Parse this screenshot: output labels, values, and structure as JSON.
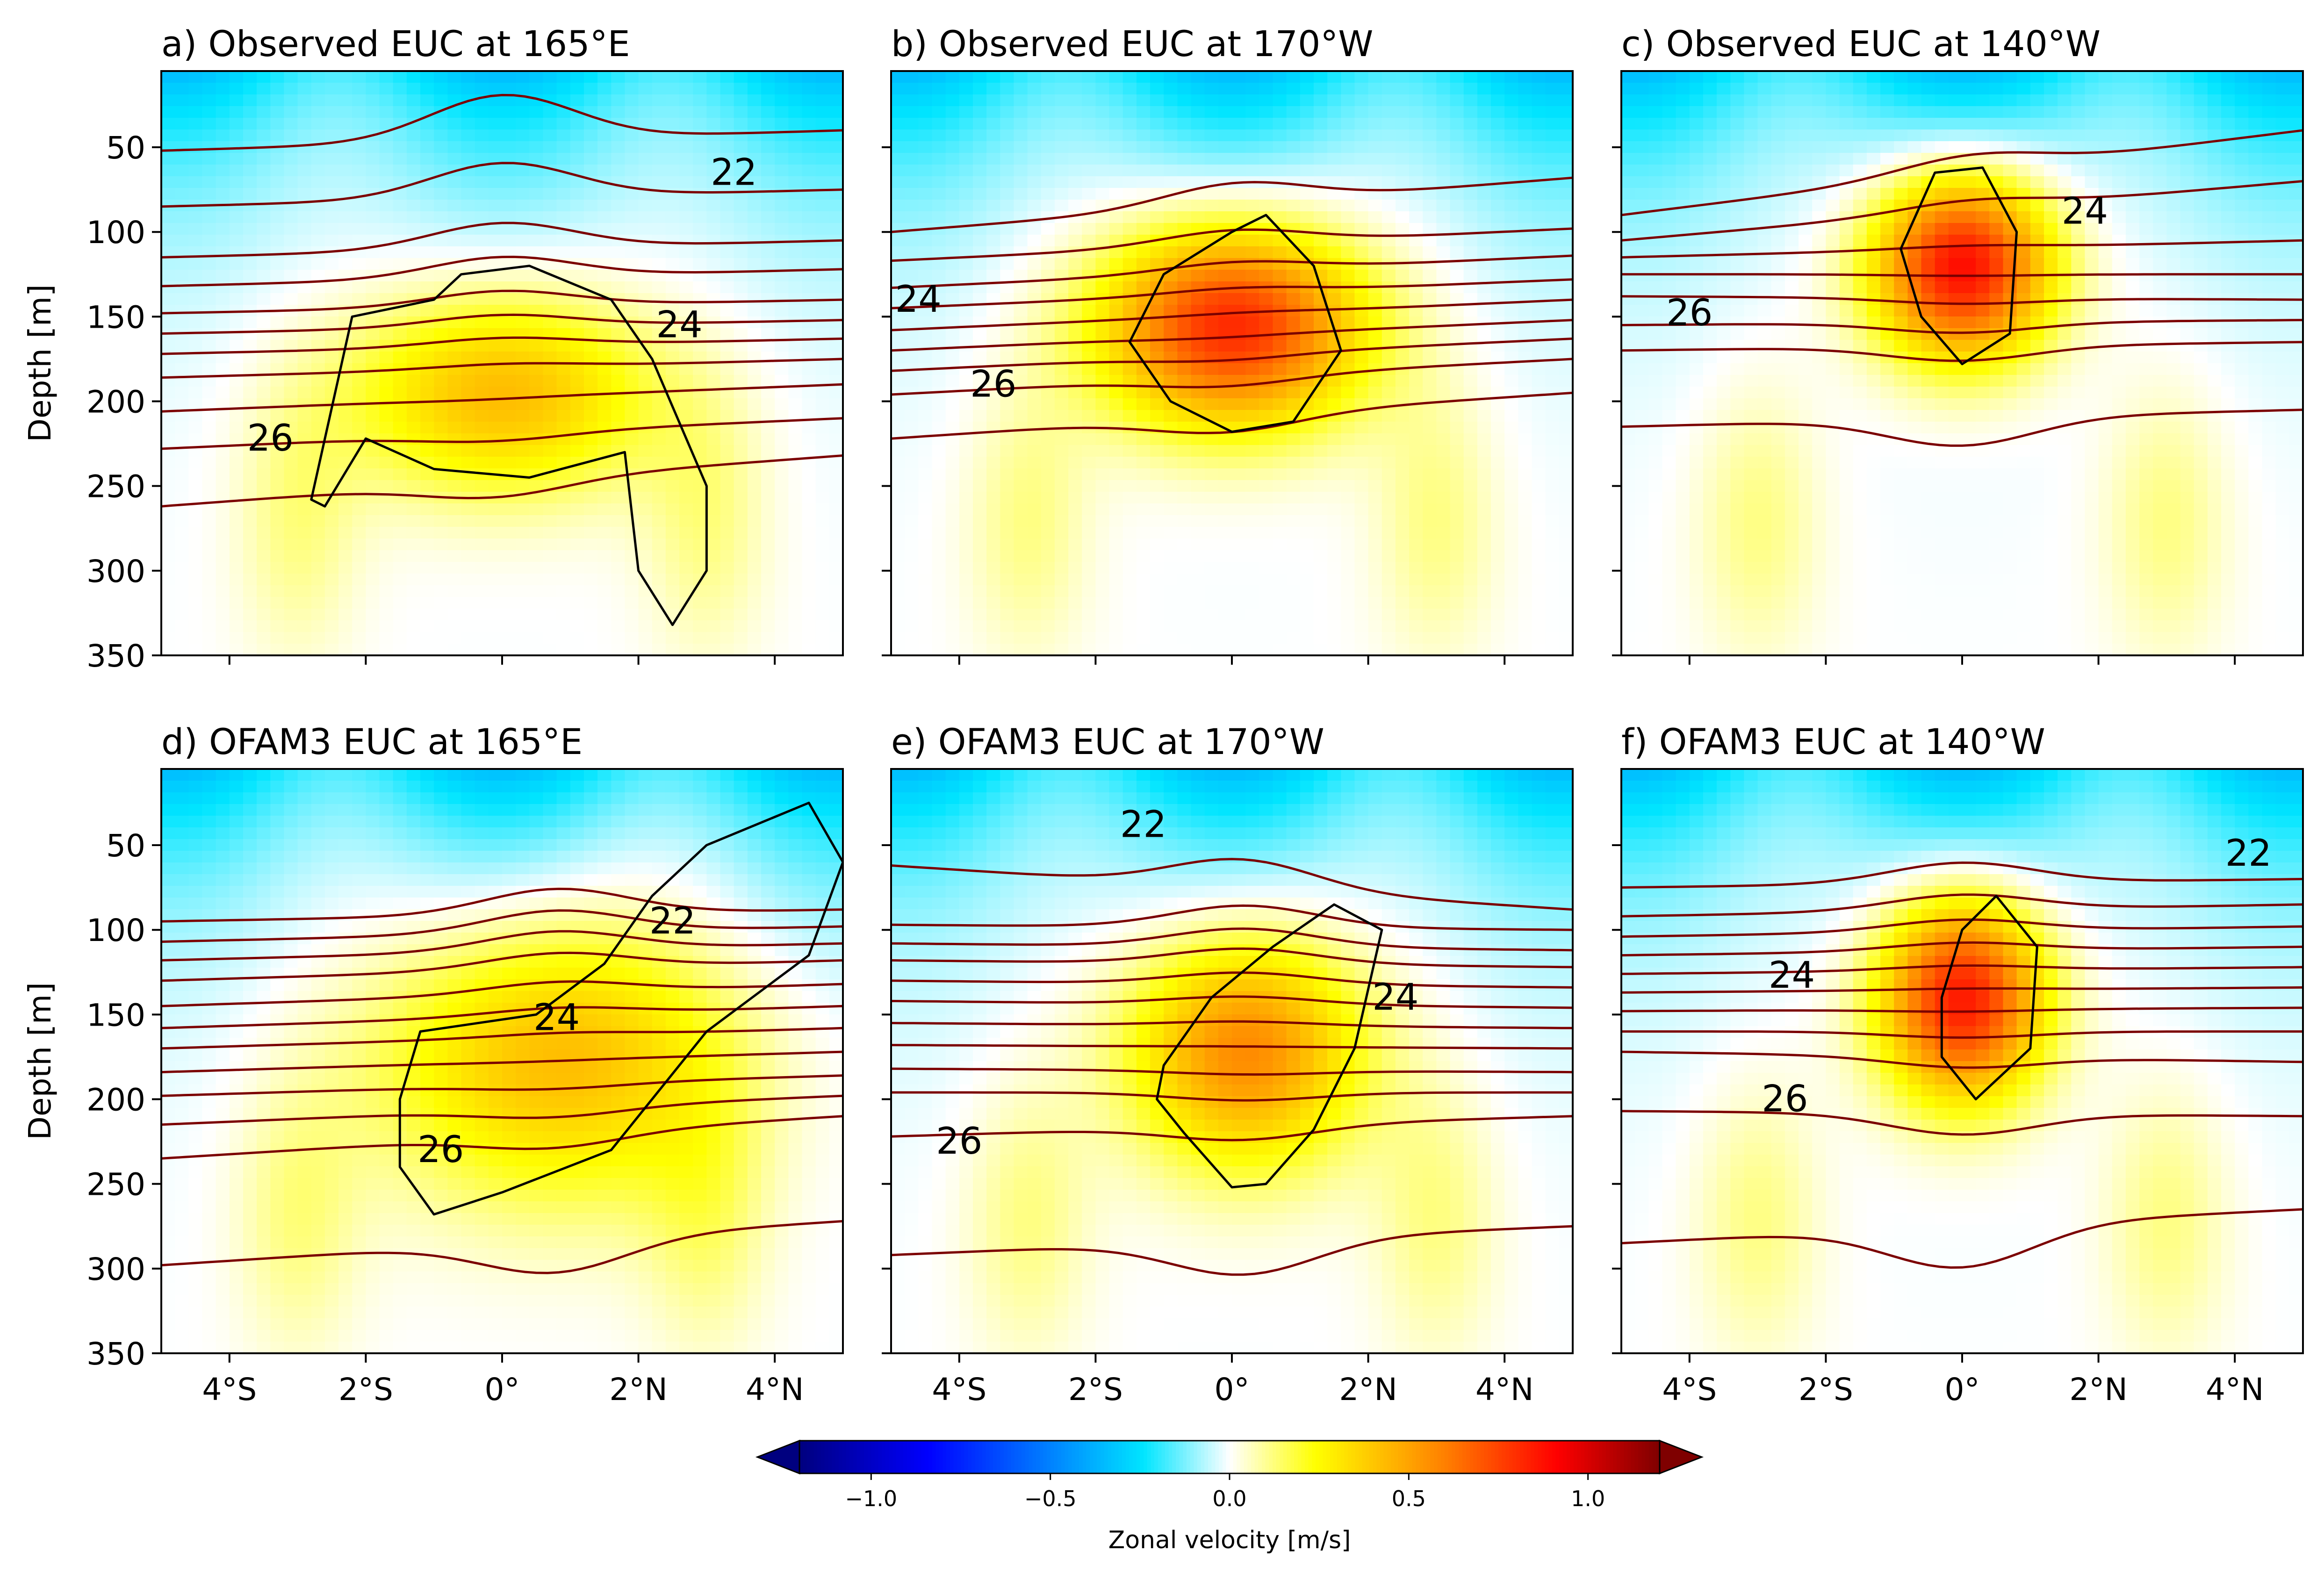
{
  "figure": {
    "colors": {
      "isotherm": "#7b0000",
      "euc_outline": "#000000",
      "colormap_stops": [
        "#00007f",
        "#0000ff",
        "#00e5ff",
        "#ffffff",
        "#ffff00",
        "#ff8000",
        "#ff0000",
        "#7f0000"
      ]
    }
  },
  "chart_data": [
    {
      "type": "heatmap",
      "title": "a) Observed EUC at 165°E",
      "ylabel": "Depth [m]",
      "xlim": [
        -5,
        5
      ],
      "ylim": [
        350,
        5
      ],
      "y_inverted": true,
      "xticks": [
        -4,
        -2,
        0,
        2,
        4
      ],
      "xtick_labels": [
        "4°S",
        "2°S",
        "0°",
        "2°N",
        "4°N"
      ],
      "xtick_labels_shown": false,
      "yticks": [
        50,
        100,
        150,
        200,
        250,
        300,
        350
      ],
      "ytick_labels": [
        "50",
        "100",
        "150",
        "200",
        "250",
        "300",
        "350"
      ],
      "ytick_labels_shown": true,
      "euc_core": {
        "lat": 0.0,
        "depth": 195,
        "max_u": 0.45,
        "lat_halfwidth": 2.2,
        "depth_halfwidth": 60
      },
      "contour_labels": [
        {
          "text": "22",
          "lat": 3.4,
          "depth": 65
        },
        {
          "text": "24",
          "lat": 2.6,
          "depth": 155
        },
        {
          "text": "26",
          "lat": -3.4,
          "depth": 222
        }
      ],
      "isotherm_depths_left": [
        52,
        85,
        115,
        132,
        148,
        160,
        172,
        186,
        206,
        228,
        262
      ],
      "isotherm_depths_right": [
        40,
        75,
        105,
        122,
        140,
        152,
        163,
        175,
        190,
        210,
        232
      ],
      "euc_outline": [
        [
          -2.8,
          258
        ],
        [
          -2.2,
          150
        ],
        [
          -1.0,
          140
        ],
        [
          -0.6,
          125
        ],
        [
          0.4,
          120
        ],
        [
          1.6,
          140
        ],
        [
          2.2,
          175
        ],
        [
          3.0,
          250
        ],
        [
          3.0,
          300
        ],
        [
          2.5,
          332
        ],
        [
          2.0,
          300
        ],
        [
          1.8,
          230
        ],
        [
          0.4,
          245
        ],
        [
          -1.0,
          240
        ],
        [
          -2.0,
          222
        ],
        [
          -2.6,
          262
        ]
      ]
    },
    {
      "type": "heatmap",
      "title": "b) Observed EUC at 170°W",
      "ylabel": "",
      "xlim": [
        -5,
        5
      ],
      "ylim": [
        350,
        5
      ],
      "y_inverted": true,
      "xticks": [
        -4,
        -2,
        0,
        2,
        4
      ],
      "xtick_labels": [
        "4°S",
        "2°S",
        "0°",
        "2°N",
        "4°N"
      ],
      "xtick_labels_shown": false,
      "yticks": [
        50,
        100,
        150,
        200,
        250,
        300,
        350
      ],
      "ytick_labels_shown": false,
      "euc_core": {
        "lat": 0.0,
        "depth": 155,
        "max_u": 0.85,
        "lat_halfwidth": 1.9,
        "depth_halfwidth": 60
      },
      "contour_labels": [
        {
          "text": "24",
          "lat": -4.6,
          "depth": 140
        },
        {
          "text": "26",
          "lat": -3.5,
          "depth": 190
        }
      ],
      "isotherm_depths_left": [
        100,
        117,
        133,
        145,
        158,
        170,
        182,
        196,
        222
      ],
      "isotherm_depths_right": [
        68,
        98,
        114,
        128,
        140,
        152,
        163,
        175,
        195
      ],
      "euc_outline": [
        [
          -1.5,
          165
        ],
        [
          -1.0,
          125
        ],
        [
          0.0,
          100
        ],
        [
          0.5,
          90
        ],
        [
          1.2,
          120
        ],
        [
          1.6,
          170
        ],
        [
          0.9,
          212
        ],
        [
          0.0,
          218
        ],
        [
          -0.9,
          200
        ]
      ]
    },
    {
      "type": "heatmap",
      "title": "c) Observed EUC at 140°W",
      "ylabel": "",
      "xlim": [
        -5,
        5
      ],
      "ylim": [
        350,
        5
      ],
      "y_inverted": true,
      "xticks": [
        -4,
        -2,
        0,
        2,
        4
      ],
      "xtick_labels": [
        "4°S",
        "2°S",
        "0°",
        "2°N",
        "4°N"
      ],
      "xtick_labels_shown": false,
      "yticks": [
        50,
        100,
        150,
        200,
        250,
        300,
        350
      ],
      "ytick_labels_shown": false,
      "euc_core": {
        "lat": 0.0,
        "depth": 120,
        "max_u": 0.95,
        "lat_halfwidth": 1.3,
        "depth_halfwidth": 55
      },
      "contour_labels": [
        {
          "text": "24",
          "lat": 1.8,
          "depth": 88
        },
        {
          "text": "26",
          "lat": -4.0,
          "depth": 148
        }
      ],
      "isotherm_depths_left": [
        90,
        105,
        115,
        125,
        138,
        155,
        170,
        215
      ],
      "isotherm_depths_right": [
        40,
        70,
        105,
        125,
        140,
        152,
        165,
        205
      ],
      "euc_outline": [
        [
          -0.9,
          110
        ],
        [
          -0.4,
          65
        ],
        [
          0.3,
          62
        ],
        [
          0.8,
          100
        ],
        [
          0.7,
          160
        ],
        [
          0.0,
          178
        ],
        [
          -0.6,
          150
        ]
      ]
    },
    {
      "type": "heatmap",
      "title": "d) OFAM3 EUC at 165°E",
      "ylabel": "Depth [m]",
      "xlim": [
        -5,
        5
      ],
      "ylim": [
        350,
        5
      ],
      "y_inverted": true,
      "xticks": [
        -4,
        -2,
        0,
        2,
        4
      ],
      "xtick_labels": [
        "4°S",
        "2°S",
        "0°",
        "2°N",
        "4°N"
      ],
      "xtick_labels_shown": true,
      "yticks": [
        50,
        100,
        150,
        200,
        250,
        300,
        350
      ],
      "ytick_labels": [
        "50",
        "100",
        "150",
        "200",
        "250",
        "300",
        "350"
      ],
      "ytick_labels_shown": true,
      "euc_core": {
        "lat": 0.8,
        "depth": 175,
        "max_u": 0.45,
        "lat_halfwidth": 2.6,
        "depth_halfwidth": 85
      },
      "contour_labels": [
        {
          "text": "22",
          "lat": 2.5,
          "depth": 95
        },
        {
          "text": "24",
          "lat": 0.8,
          "depth": 152
        },
        {
          "text": "26",
          "lat": -0.9,
          "depth": 230
        }
      ],
      "isotherm_depths_left": [
        95,
        107,
        118,
        130,
        145,
        158,
        170,
        184,
        198,
        215,
        235,
        298
      ],
      "isotherm_depths_right": [
        88,
        98,
        108,
        118,
        132,
        145,
        158,
        172,
        186,
        198,
        210,
        272
      ],
      "euc_outline": [
        [
          -1.5,
          200
        ],
        [
          -1.2,
          160
        ],
        [
          0.5,
          150
        ],
        [
          1.5,
          120
        ],
        [
          2.2,
          80
        ],
        [
          3.0,
          50
        ],
        [
          4.5,
          25
        ],
        [
          5.0,
          60
        ],
        [
          4.5,
          115
        ],
        [
          3.0,
          160
        ],
        [
          1.6,
          230
        ],
        [
          0.0,
          255
        ],
        [
          -1.0,
          268
        ],
        [
          -1.5,
          240
        ]
      ]
    },
    {
      "type": "heatmap",
      "title": "e) OFAM3 EUC at 170°W",
      "ylabel": "",
      "xlim": [
        -5,
        5
      ],
      "ylim": [
        350,
        5
      ],
      "y_inverted": true,
      "xticks": [
        -4,
        -2,
        0,
        2,
        4
      ],
      "xtick_labels": [
        "4°S",
        "2°S",
        "0°",
        "2°N",
        "4°N"
      ],
      "xtick_labels_shown": true,
      "yticks": [
        50,
        100,
        150,
        200,
        250,
        300,
        350
      ],
      "ytick_labels_shown": false,
      "euc_core": {
        "lat": 0.2,
        "depth": 170,
        "max_u": 0.6,
        "lat_halfwidth": 1.7,
        "depth_halfwidth": 70
      },
      "contour_labels": [
        {
          "text": "22",
          "lat": -1.3,
          "depth": 38
        },
        {
          "text": "24",
          "lat": 2.4,
          "depth": 140
        },
        {
          "text": "26",
          "lat": -4.0,
          "depth": 225
        }
      ],
      "isotherm_depths_left": [
        62,
        97,
        108,
        118,
        130,
        142,
        155,
        168,
        182,
        196,
        222,
        292
      ],
      "isotherm_depths_right": [
        88,
        100,
        112,
        122,
        134,
        146,
        158,
        170,
        184,
        196,
        210,
        275
      ],
      "euc_outline": [
        [
          -1.0,
          180
        ],
        [
          -0.3,
          140
        ],
        [
          0.6,
          110
        ],
        [
          1.5,
          85
        ],
        [
          2.2,
          100
        ],
        [
          1.8,
          170
        ],
        [
          1.2,
          218
        ],
        [
          0.5,
          250
        ],
        [
          0.0,
          252
        ],
        [
          -0.7,
          220
        ],
        [
          -1.1,
          200
        ]
      ]
    },
    {
      "type": "heatmap",
      "title": "f) OFAM3 EUC at 140°W",
      "ylabel": "",
      "xlim": [
        -5,
        5
      ],
      "ylim": [
        350,
        5
      ],
      "y_inverted": true,
      "xticks": [
        -4,
        -2,
        0,
        2,
        4
      ],
      "xtick_labels": [
        "4°S",
        "2°S",
        "0°",
        "2°N",
        "4°N"
      ],
      "xtick_labels_shown": true,
      "yticks": [
        50,
        100,
        150,
        200,
        250,
        300,
        350
      ],
      "ytick_labels_shown": false,
      "euc_core": {
        "lat": 0.0,
        "depth": 140,
        "max_u": 0.9,
        "lat_halfwidth": 1.2,
        "depth_halfwidth": 60
      },
      "contour_labels": [
        {
          "text": "22",
          "lat": 4.2,
          "depth": 55
        },
        {
          "text": "24",
          "lat": -2.5,
          "depth": 127
        },
        {
          "text": "26",
          "lat": -2.6,
          "depth": 200
        }
      ],
      "isotherm_depths_left": [
        75,
        92,
        104,
        115,
        126,
        137,
        148,
        160,
        172,
        207,
        285
      ],
      "isotherm_depths_right": [
        70,
        85,
        98,
        110,
        122,
        134,
        146,
        160,
        178,
        210,
        265
      ],
      "euc_outline": [
        [
          -0.3,
          140
        ],
        [
          0.0,
          100
        ],
        [
          0.5,
          80
        ],
        [
          1.1,
          110
        ],
        [
          1.0,
          170
        ],
        [
          0.2,
          200
        ],
        [
          -0.3,
          175
        ]
      ]
    }
  ],
  "colorbar": {
    "label": "Zonal velocity [m/s]",
    "min": -1.2,
    "max": 1.2,
    "ticks": [
      -1.0,
      -0.5,
      0.0,
      0.5,
      1.0
    ],
    "tick_labels": [
      "−1.0",
      "−0.5",
      "0.0",
      "0.5",
      "1.0"
    ],
    "extend": "both"
  }
}
